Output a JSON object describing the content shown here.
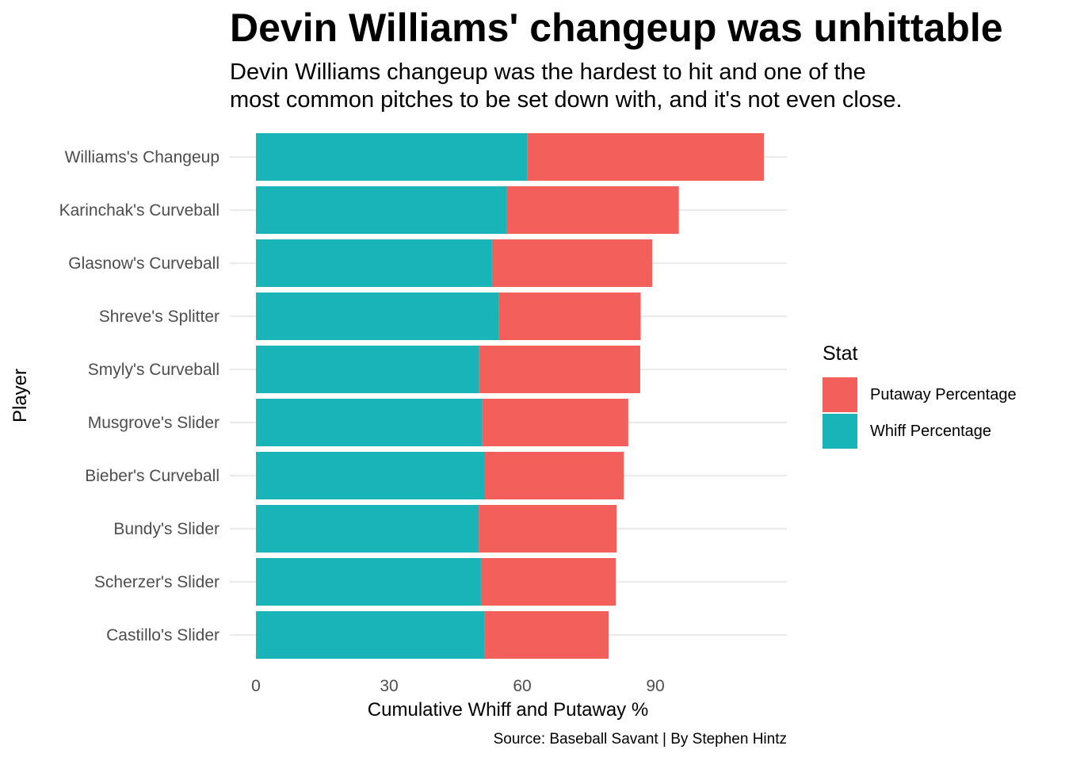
{
  "title": "Devin Williams' changeup was unhittable",
  "subtitle_lines": [
    "Devin Williams changeup was the hardest to hit and one of the",
    "most common pitches to be set down with, and it's not even close."
  ],
  "caption": "Source: Baseball Savant | By Stephen Hintz",
  "legend": {
    "title": "Stat",
    "items": [
      {
        "label": "Putaway Percentage",
        "color": "#F35F5B"
      },
      {
        "label": "Whiff Percentage",
        "color": "#19B4B8"
      }
    ]
  },
  "chart_data": {
    "type": "bar",
    "orientation": "horizontal",
    "stacked": true,
    "xlabel": "Cumulative Whiff and Putaway %",
    "ylabel": "Player",
    "xlim": [
      0,
      120
    ],
    "x_ticks": [
      0,
      30,
      60,
      90
    ],
    "grid": true,
    "legend_position": "right",
    "categories": [
      "Williams's Changeup",
      "Karinchak's Curveball",
      "Glasnow's Curveball",
      "Shreve's Splitter",
      "Smyly's Curveball",
      "Musgrove's Slider",
      "Bieber's Curveball",
      "Bundy's Slider",
      "Scherzer's Slider",
      "Castillo's Slider"
    ],
    "series": [
      {
        "name": "Whiff Percentage",
        "color": "#19B4B8",
        "values": [
          61.2,
          56.5,
          53.2,
          54.8,
          50.3,
          51.0,
          51.6,
          50.2,
          50.7,
          51.5
        ]
      },
      {
        "name": "Putaway Percentage",
        "color": "#F35F5B",
        "values": [
          53.3,
          38.8,
          36.1,
          31.9,
          36.3,
          32.9,
          31.3,
          31.1,
          30.4,
          28.0
        ]
      }
    ]
  }
}
